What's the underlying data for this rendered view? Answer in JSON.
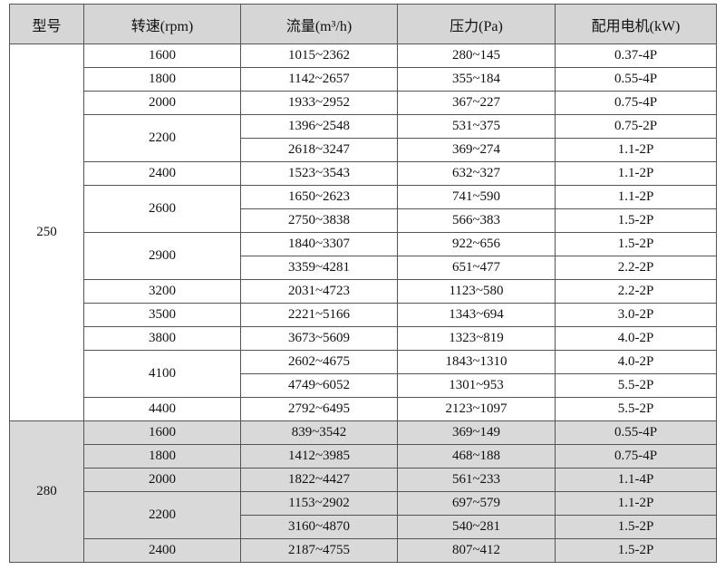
{
  "table": {
    "header": [
      "型号",
      "转速(rpm)",
      "流量(m³/h)",
      "压力(Pa)",
      "配用电机(kW)"
    ],
    "groups": [
      {
        "model": "250",
        "speeds": [
          {
            "rpm": "1600",
            "rows": [
              [
                "1015~2362",
                "280~145",
                "0.37-4P"
              ]
            ]
          },
          {
            "rpm": "1800",
            "rows": [
              [
                "1142~2657",
                "355~184",
                "0.55-4P"
              ]
            ]
          },
          {
            "rpm": "2000",
            "rows": [
              [
                "1933~2952",
                "367~227",
                "0.75-4P"
              ]
            ]
          },
          {
            "rpm": "2200",
            "rows": [
              [
                "1396~2548",
                "531~375",
                "0.75-2P"
              ],
              [
                "2618~3247",
                "369~274",
                "1.1-2P"
              ]
            ]
          },
          {
            "rpm": "2400",
            "rows": [
              [
                "1523~3543",
                "632~327",
                "1.1-2P"
              ]
            ]
          },
          {
            "rpm": "2600",
            "rows": [
              [
                "1650~2623",
                "741~590",
                "1.1-2P"
              ],
              [
                "2750~3838",
                "566~383",
                "1.5-2P"
              ]
            ]
          },
          {
            "rpm": "2900",
            "rows": [
              [
                "1840~3307",
                "922~656",
                "1.5-2P"
              ],
              [
                "3359~4281",
                "651~477",
                "2.2-2P"
              ]
            ]
          },
          {
            "rpm": "3200",
            "rows": [
              [
                "2031~4723",
                "1123~580",
                "2.2-2P"
              ]
            ]
          },
          {
            "rpm": "3500",
            "rows": [
              [
                "2221~5166",
                "1343~694",
                "3.0-2P"
              ]
            ]
          },
          {
            "rpm": "3800",
            "rows": [
              [
                "3673~5609",
                "1323~819",
                "4.0-2P"
              ]
            ]
          },
          {
            "rpm": "4100",
            "rows": [
              [
                "2602~4675",
                "1843~1310",
                "4.0-2P"
              ],
              [
                "4749~6052",
                "1301~953",
                "5.5-2P"
              ]
            ]
          },
          {
            "rpm": "4400",
            "rows": [
              [
                "2792~6495",
                "2123~1097",
                "5.5-2P"
              ]
            ]
          }
        ]
      },
      {
        "model": "280",
        "speeds": [
          {
            "rpm": "1600",
            "rows": [
              [
                "839~3542",
                "369~149",
                "0.55-4P"
              ]
            ]
          },
          {
            "rpm": "1800",
            "rows": [
              [
                "1412~3985",
                "468~188",
                "0.75-4P"
              ]
            ]
          },
          {
            "rpm": "2000",
            "rows": [
              [
                "1822~4427",
                "561~233",
                "1.1-4P"
              ]
            ]
          },
          {
            "rpm": "2200",
            "rows": [
              [
                "1153~2902",
                "697~579",
                "1.1-2P"
              ],
              [
                "3160~4870",
                "540~281",
                "1.5-2P"
              ]
            ]
          },
          {
            "rpm": "2400",
            "rows": [
              [
                "2187~4755",
                "807~412",
                "1.5-2P"
              ]
            ]
          }
        ]
      }
    ]
  }
}
